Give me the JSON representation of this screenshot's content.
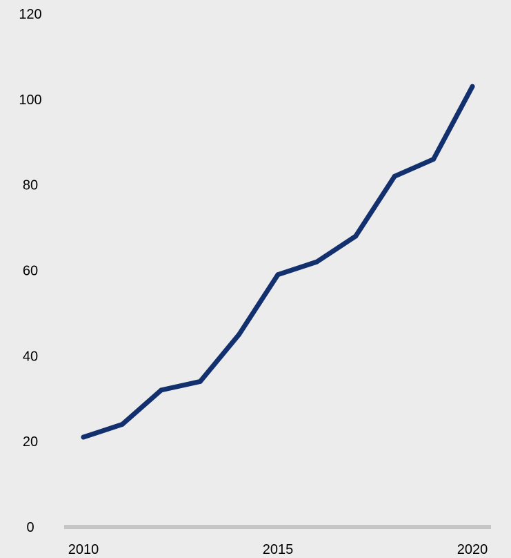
{
  "chart_data": {
    "type": "line",
    "title": "",
    "xlabel": "",
    "ylabel": "",
    "x": [
      2010,
      2011,
      2012,
      2013,
      2014,
      2015,
      2016,
      2017,
      2018,
      2019,
      2020
    ],
    "series": [
      {
        "values": [
          21,
          24,
          32,
          34,
          45,
          59,
          62,
          68,
          82,
          86,
          103
        ]
      }
    ],
    "xlim": [
      2010,
      2020
    ],
    "ylim": [
      0,
      120
    ],
    "x_ticks": [
      "2010",
      "2015",
      "2020"
    ],
    "y_ticks": [
      "0",
      "20",
      "40",
      "60",
      "80",
      "100",
      "120"
    ],
    "grid": false,
    "legend": "none",
    "colors": {
      "background": "#ececec",
      "line": "#12306e",
      "baseline": "#c6c6c6",
      "text": "#000000"
    }
  }
}
